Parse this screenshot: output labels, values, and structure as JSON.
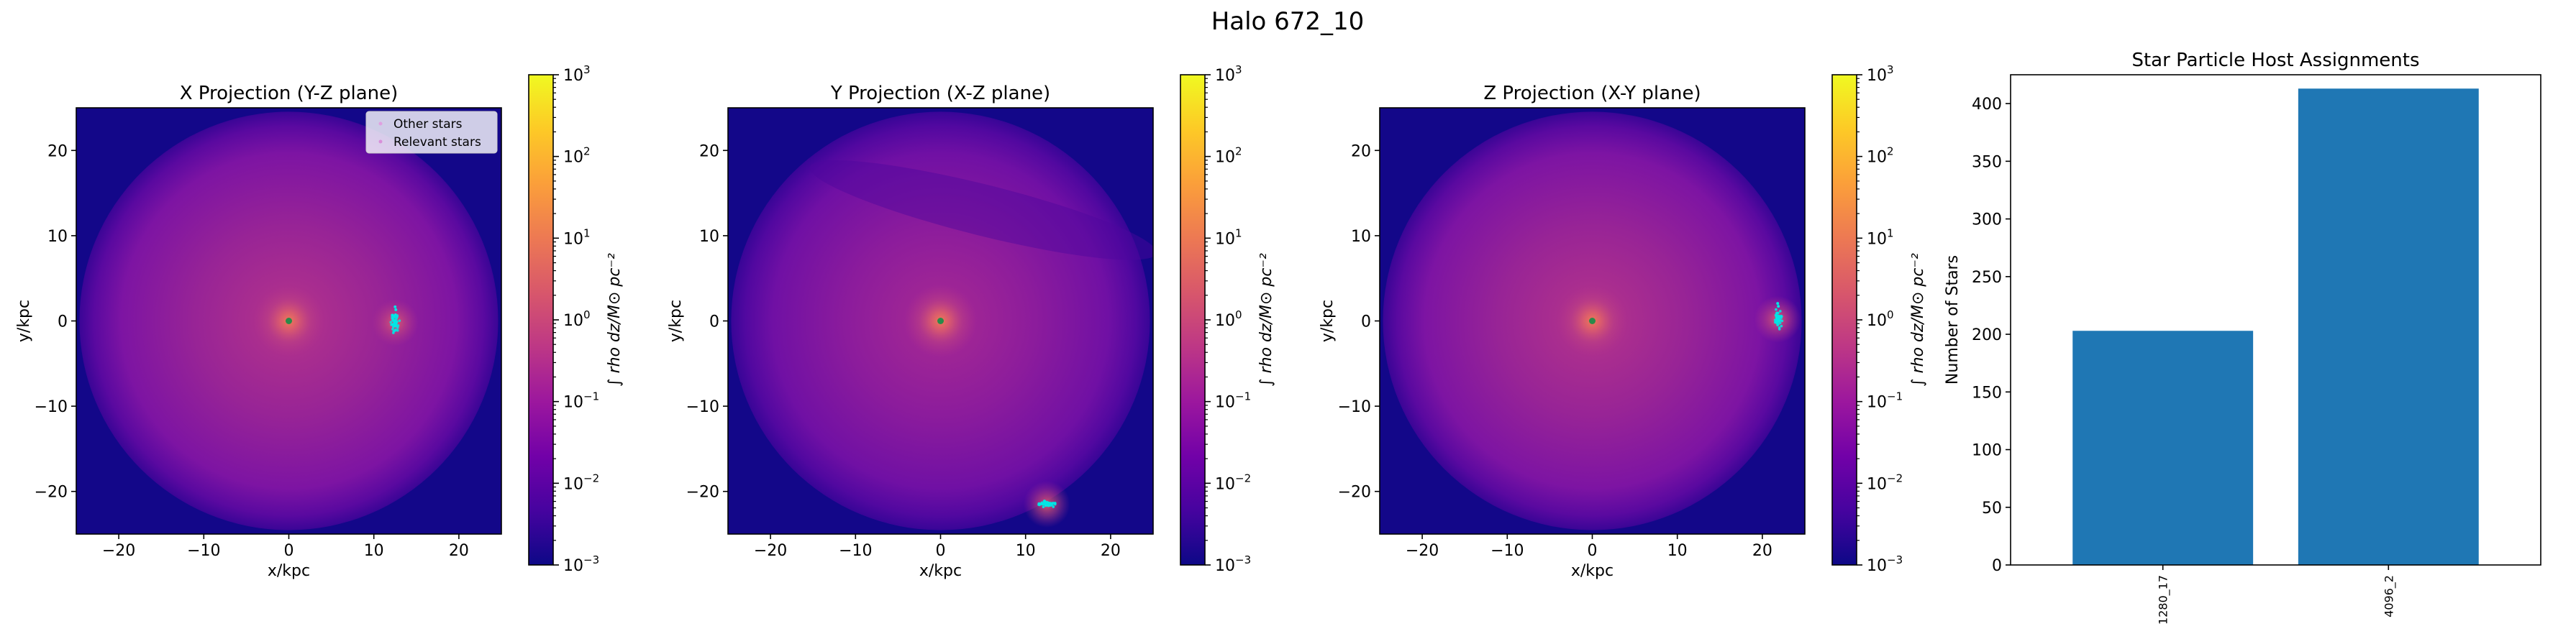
{
  "figure": {
    "suptitle": "Halo 672_10"
  },
  "colors": {
    "cmap": [
      "#0d0887",
      "#46039f",
      "#7201a8",
      "#9c179e",
      "#bd3786",
      "#d8576b",
      "#ed7953",
      "#fb9f3a",
      "#fdca26",
      "#f0f921"
    ],
    "field_base": "#130789",
    "relevant_stars": "#00e5e5",
    "other_stars": "#e0a0e0",
    "bar": "#1f77b4"
  },
  "chart_data": [
    {
      "type": "heatmap",
      "title": "X Projection (Y-Z plane)",
      "xlabel": "x/kpc",
      "ylabel": "y/kpc",
      "xlim": [
        -25,
        25
      ],
      "ylim": [
        -25,
        25
      ],
      "xticks": [
        -20,
        -10,
        0,
        10,
        20
      ],
      "yticks": [
        -20,
        -10,
        0,
        10,
        20
      ],
      "xtick_labels": [
        "−20",
        "−10",
        "0",
        "10",
        "20"
      ],
      "ytick_labels": [
        "−20",
        "−10",
        "0",
        "10",
        "20"
      ],
      "legend": {
        "position": "top-right",
        "entries": [
          "Other stars",
          "Relevant stars"
        ]
      },
      "center": [
        0,
        0
      ],
      "relevant_stars_position": [
        12.5,
        -0.2
      ],
      "colorbar": {
        "label": "∫ rho dz/M⊙ pc⁻²",
        "scale": "log",
        "range": [
          0.001,
          1000
        ],
        "tick_labels": [
          {
            "base": "10",
            "exp": "3"
          },
          {
            "base": "10",
            "exp": "2"
          },
          {
            "base": "10",
            "exp": "1"
          },
          {
            "base": "10",
            "exp": "0"
          },
          {
            "base": "10",
            "exp": "−1"
          },
          {
            "base": "10",
            "exp": "−2"
          },
          {
            "base": "10",
            "exp": "−3"
          }
        ]
      }
    },
    {
      "type": "heatmap",
      "title": "Y Projection (X-Z plane)",
      "xlabel": "x/kpc",
      "ylabel": "y/kpc",
      "xlim": [
        -25,
        25
      ],
      "ylim": [
        -25,
        25
      ],
      "xticks": [
        -20,
        -10,
        0,
        10,
        20
      ],
      "yticks": [
        -20,
        -10,
        0,
        10,
        20
      ],
      "xtick_labels": [
        "−20",
        "−10",
        "0",
        "10",
        "20"
      ],
      "ytick_labels": [
        "−20",
        "−10",
        "0",
        "10",
        "20"
      ],
      "center": [
        0,
        0
      ],
      "relevant_stars_position": [
        12.5,
        -21.5
      ],
      "colorbar": {
        "label": "∫ rho dz/M⊙ pc⁻²",
        "scale": "log",
        "range": [
          0.001,
          1000
        ],
        "tick_labels": [
          {
            "base": "10",
            "exp": "3"
          },
          {
            "base": "10",
            "exp": "2"
          },
          {
            "base": "10",
            "exp": "1"
          },
          {
            "base": "10",
            "exp": "0"
          },
          {
            "base": "10",
            "exp": "−1"
          },
          {
            "base": "10",
            "exp": "−2"
          },
          {
            "base": "10",
            "exp": "−3"
          }
        ]
      }
    },
    {
      "type": "heatmap",
      "title": "Z Projection (X-Y plane)",
      "xlabel": "x/kpc",
      "ylabel": "y/kpc",
      "xlim": [
        -25,
        25
      ],
      "ylim": [
        -25,
        25
      ],
      "xticks": [
        -20,
        -10,
        0,
        10,
        20
      ],
      "yticks": [
        -20,
        -10,
        0,
        10,
        20
      ],
      "xtick_labels": [
        "−20",
        "−10",
        "0",
        "10",
        "20"
      ],
      "ytick_labels": [
        "−20",
        "−10",
        "0",
        "10",
        "20"
      ],
      "center": [
        0,
        0
      ],
      "relevant_stars_position": [
        21.8,
        0.2
      ],
      "colorbar": {
        "label": "∫ rho dz/M⊙ pc⁻²",
        "scale": "log",
        "range": [
          0.001,
          1000
        ],
        "tick_labels": [
          {
            "base": "10",
            "exp": "3"
          },
          {
            "base": "10",
            "exp": "2"
          },
          {
            "base": "10",
            "exp": "1"
          },
          {
            "base": "10",
            "exp": "0"
          },
          {
            "base": "10",
            "exp": "−1"
          },
          {
            "base": "10",
            "exp": "−2"
          },
          {
            "base": "10",
            "exp": "−3"
          }
        ]
      }
    },
    {
      "type": "bar",
      "title": "Star Particle Host Assignments",
      "ylabel": "Number of Stars",
      "xlabel": "",
      "categories": [
        "1280_17",
        "4096_2"
      ],
      "values": [
        203,
        413
      ],
      "ylim": [
        0,
        425
      ],
      "yticks": [
        0,
        50,
        100,
        150,
        200,
        250,
        300,
        350,
        400
      ],
      "ytick_labels": [
        "0",
        "50",
        "100",
        "150",
        "200",
        "250",
        "300",
        "350",
        "400"
      ]
    }
  ]
}
